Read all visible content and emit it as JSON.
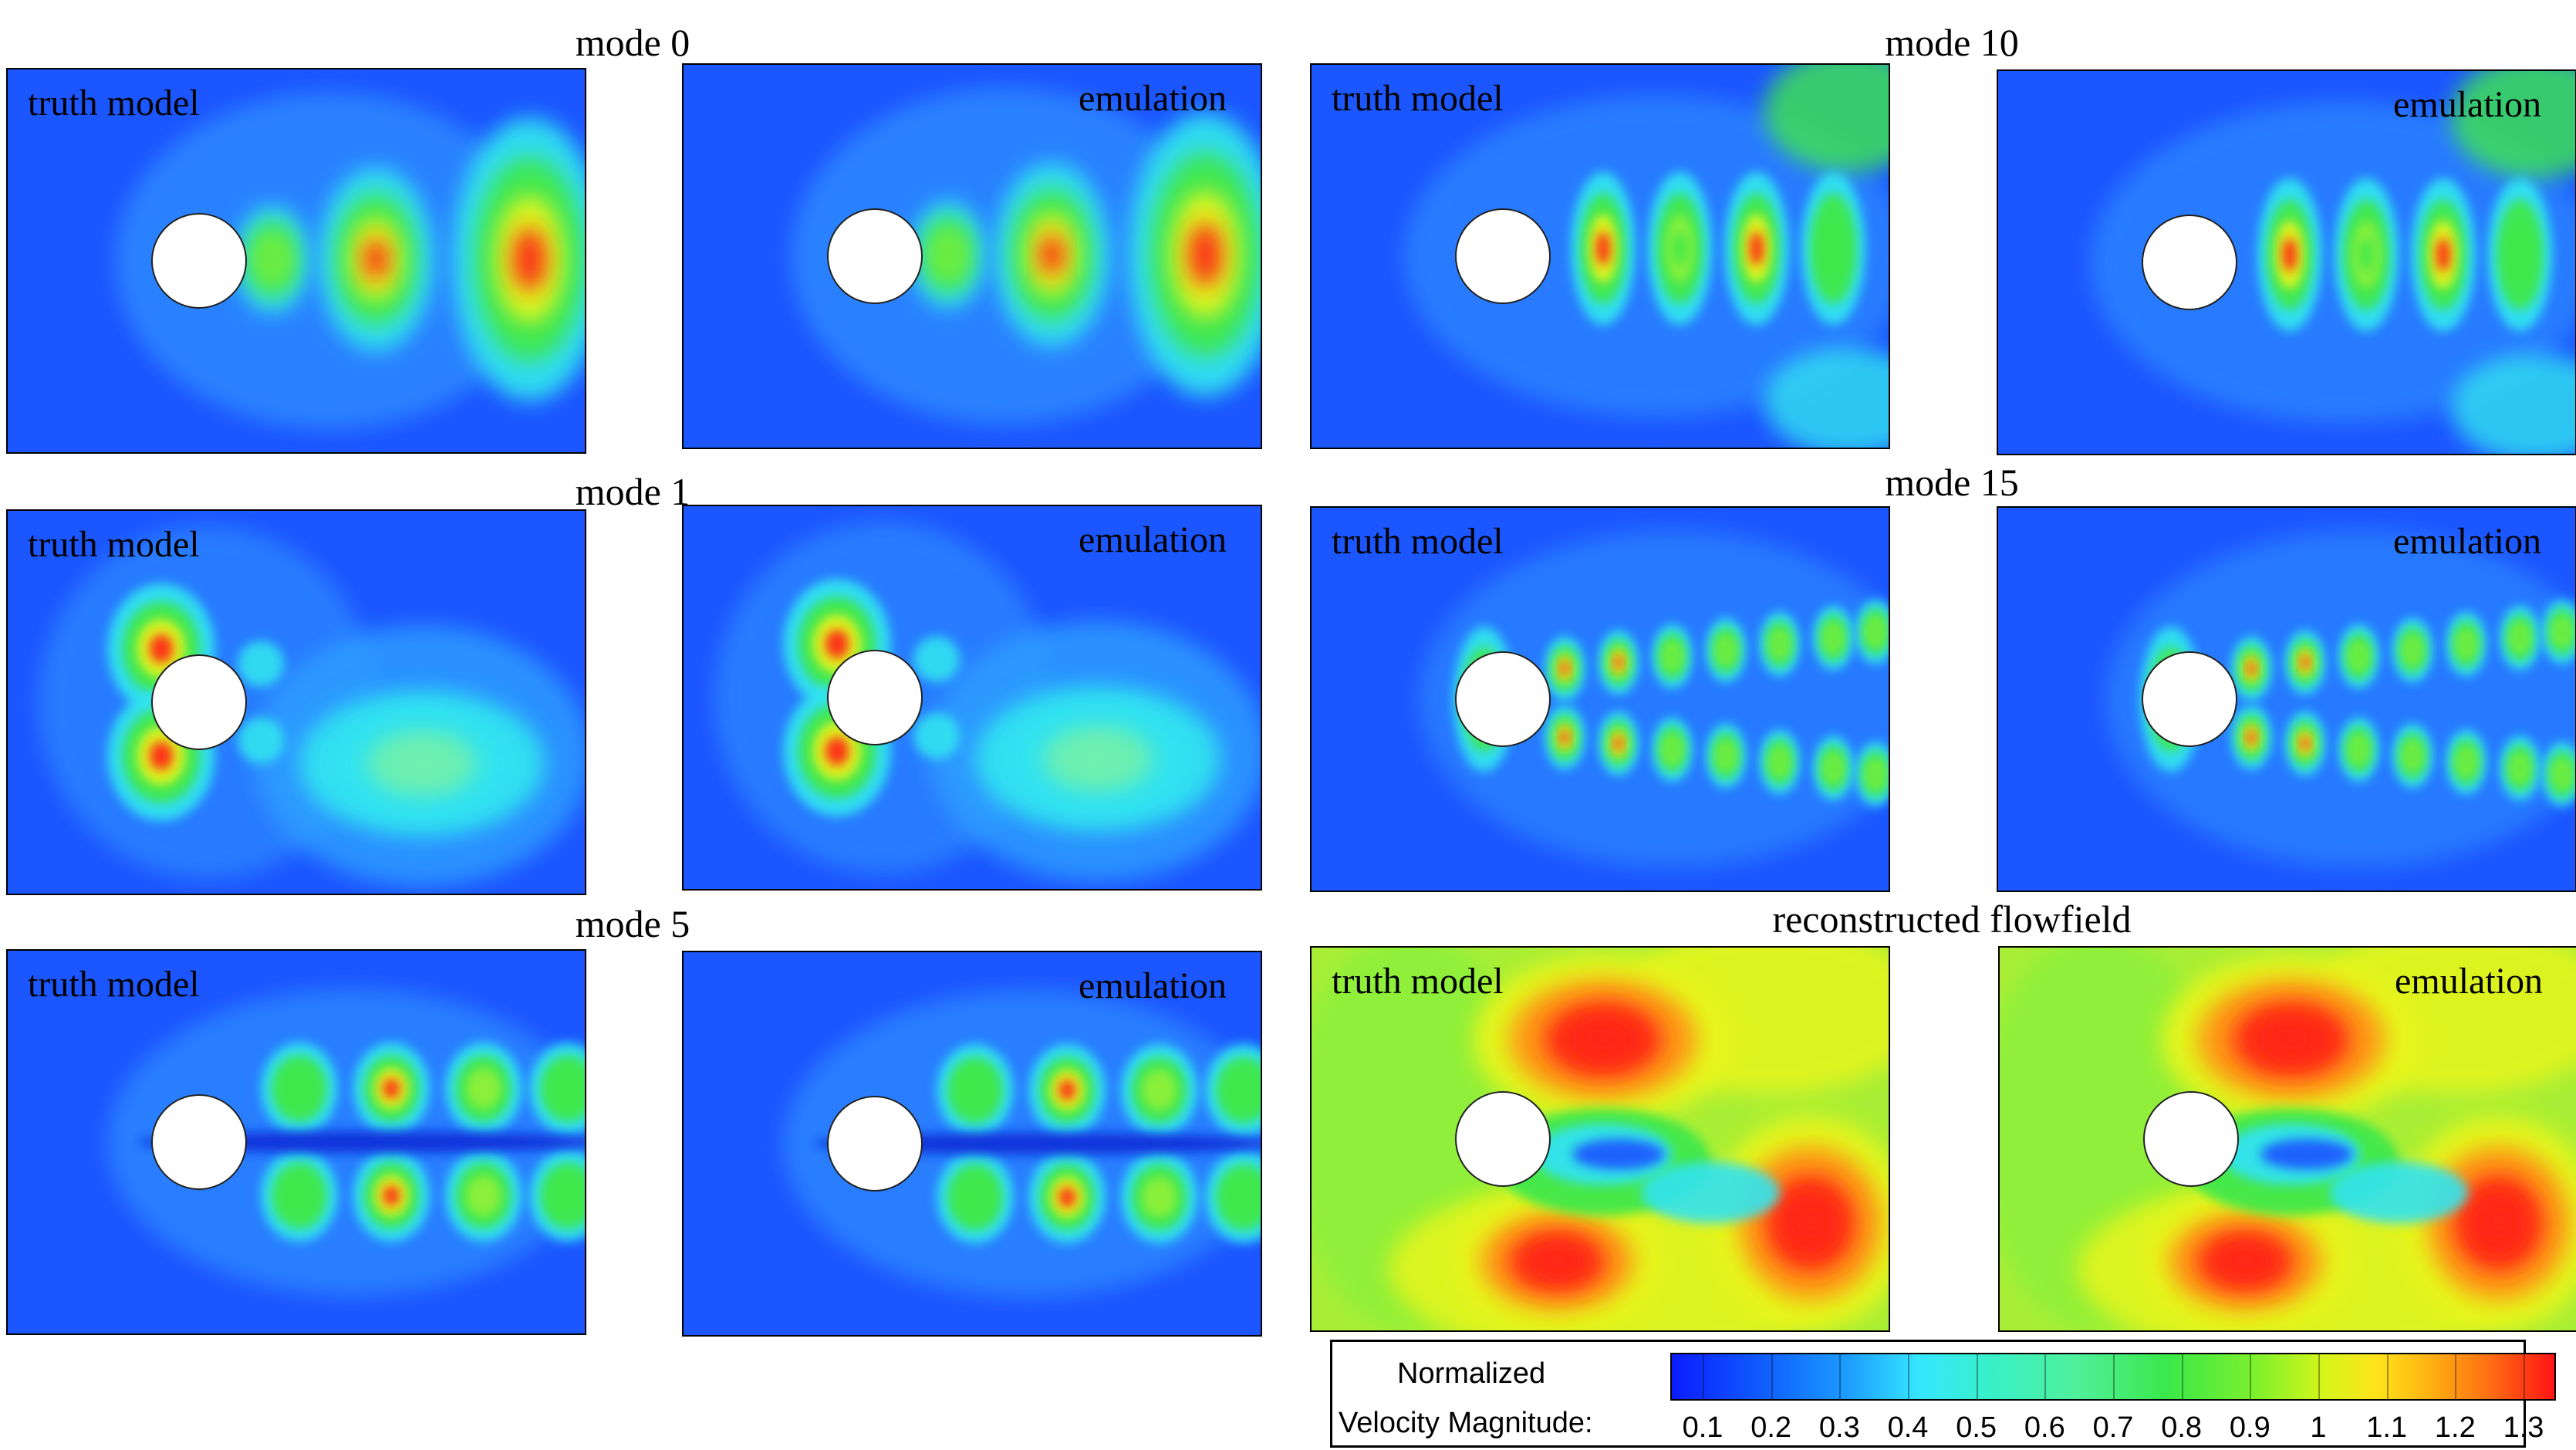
{
  "panel_labels": {
    "left": "truth model",
    "right": "emulation"
  },
  "rows": [
    {
      "title": "mode 0",
      "pattern": "mode0"
    },
    {
      "title": "mode 1",
      "pattern": "mode1"
    },
    {
      "title": "mode 5",
      "pattern": "mode5"
    },
    {
      "title": "mode 10",
      "pattern": "mode10"
    },
    {
      "title": "mode 15",
      "pattern": "mode15"
    },
    {
      "title": "reconstructed flowfield",
      "pattern": "recon"
    }
  ],
  "legend": {
    "title_line1": "Normalized",
    "title_line2": "Velocity Magnitude:",
    "ticks": [
      "0.1",
      "0.2",
      "0.3",
      "0.4",
      "0.5",
      "0.6",
      "0.7",
      "0.8",
      "0.9",
      "1",
      "1.1",
      "1.2",
      "1.3"
    ],
    "colors": {
      "low": "#0b1cff",
      "mid": "#39e84a",
      "high": "#ff1414"
    }
  },
  "icons": {
    "cylinder": "white-circle"
  }
}
